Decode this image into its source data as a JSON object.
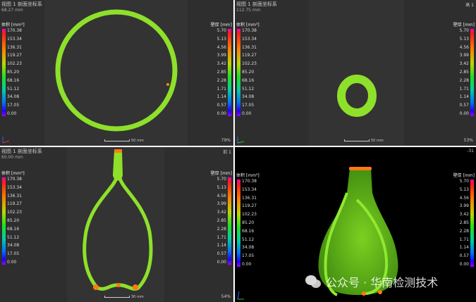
{
  "legend_left": {
    "label": "体积 [mm³]",
    "values": [
      "170.38",
      "153.34",
      "136.31",
      "119.27",
      "102.23",
      "85.20",
      "68.16",
      "51.12",
      "34.08",
      "17.05",
      "0.00"
    ]
  },
  "legend_right": {
    "label": "壁厚 [mm]",
    "values": [
      "5.70",
      "5.13",
      "4.56",
      "3.99",
      "3.42",
      "2.85",
      "2.28",
      "1.71",
      "1.14",
      "0.57",
      "0.00"
    ]
  },
  "panels": [
    {
      "title": "视图 1 剖面坐标系",
      "dimension": "68.27 mm",
      "scale": "50 mm",
      "zoom": "79%"
    },
    {
      "title": "视图 1 剖面坐标系",
      "dimension": "112.75 mm",
      "scale": "50 mm",
      "zoom": "53%",
      "corner": "高 1"
    },
    {
      "title": "视图 1 剖面坐标系",
      "dimension": "60.00 mm",
      "scale": "30 mm",
      "zoom": "54%",
      "corner": "前 1"
    },
    {
      "title": "",
      "dimension": "",
      "scale": "",
      "zoom": "",
      "corner": "-31"
    }
  ],
  "watermark": "公众号 · 华南检测技术",
  "colors": {
    "wall": "#8ee02a",
    "hotspot": "#ff7a10",
    "background": "#2e2e2e"
  }
}
